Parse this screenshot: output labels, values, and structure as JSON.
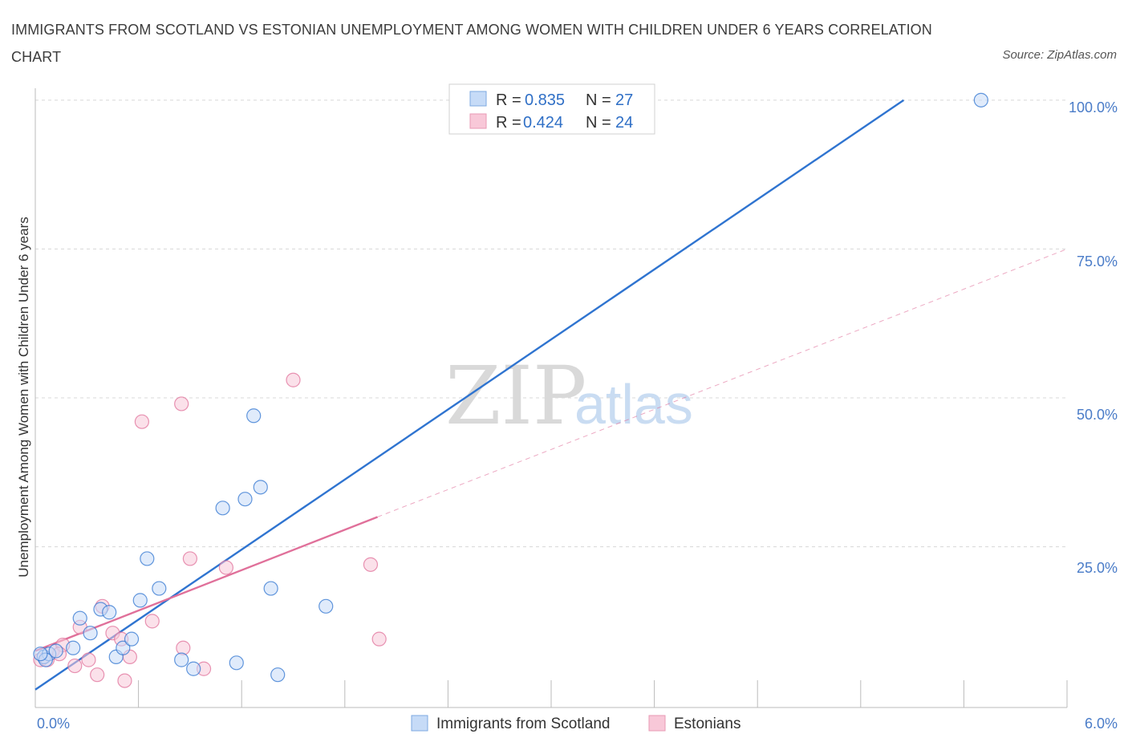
{
  "title": "IMMIGRANTS FROM SCOTLAND VS ESTONIAN UNEMPLOYMENT AMONG WOMEN WITH CHILDREN UNDER 6 YEARS CORRELATION CHART",
  "source": "Source: ZipAtlas.com",
  "watermark": {
    "zip": "ZIP",
    "atlas": "atlas"
  },
  "colors": {
    "blue": "#2f74d0",
    "blue_fill": "#c6dbf7",
    "pink": "#e0709a",
    "pink_fill": "#f8c8d8",
    "grid": "#d8d8d8",
    "axis_text": "#4a7cc8"
  },
  "legend": {
    "rows": [
      {
        "r_label": "R =",
        "r_value": "0.835",
        "n_label": "N =",
        "n_value": "27"
      },
      {
        "r_label": "R =",
        "r_value": "0.424",
        "n_label": "N =",
        "n_value": "24"
      }
    ]
  },
  "chart_data": {
    "type": "scatter",
    "title": "IMMIGRANTS FROM SCOTLAND VS ESTONIAN UNEMPLOYMENT AMONG WOMEN WITH CHILDREN UNDER 6 YEARS CORRELATION CHART",
    "xlabel": "",
    "ylabel": "Unemployment Among Women with Children Under 6 years",
    "xlim": [
      0,
      6
    ],
    "ylim": [
      -2,
      102
    ],
    "x_tick_labels": [
      "0.0%",
      "6.0%"
    ],
    "y_ticks": [
      25,
      50,
      75,
      100
    ],
    "y_tick_labels": [
      "25.0%",
      "50.0%",
      "75.0%",
      "100.0%"
    ],
    "series": [
      {
        "name": "Immigrants from Scotland",
        "color": "blue",
        "points": [
          [
            0.05,
            6.5
          ],
          [
            0.08,
            7.0
          ],
          [
            0.12,
            7.5
          ],
          [
            0.22,
            8.0
          ],
          [
            0.26,
            13.0
          ],
          [
            0.32,
            10.5
          ],
          [
            0.38,
            14.5
          ],
          [
            0.43,
            14.0
          ],
          [
            0.47,
            6.5
          ],
          [
            0.51,
            8.0
          ],
          [
            0.56,
            9.5
          ],
          [
            0.61,
            16.0
          ],
          [
            0.65,
            23.0
          ],
          [
            0.72,
            18.0
          ],
          [
            0.85,
            6.0
          ],
          [
            0.92,
            4.5
          ],
          [
            1.09,
            31.5
          ],
          [
            1.17,
            5.5
          ],
          [
            1.22,
            33.0
          ],
          [
            1.27,
            47.0
          ],
          [
            1.31,
            35.0
          ],
          [
            1.37,
            18.0
          ],
          [
            1.41,
            3.5
          ],
          [
            1.69,
            15.0
          ],
          [
            0.06,
            6.0
          ],
          [
            0.03,
            7.0
          ],
          [
            5.5,
            100.0
          ]
        ],
        "trend": {
          "x": [
            0.0,
            5.05
          ],
          "y": [
            1.0,
            100.0
          ]
        }
      },
      {
        "name": "Estonians",
        "color": "pink",
        "points": [
          [
            0.03,
            6.0
          ],
          [
            0.1,
            7.5
          ],
          [
            0.16,
            8.5
          ],
          [
            0.23,
            5.0
          ],
          [
            0.26,
            11.5
          ],
          [
            0.31,
            6.0
          ],
          [
            0.36,
            3.5
          ],
          [
            0.39,
            15.0
          ],
          [
            0.45,
            10.5
          ],
          [
            0.5,
            9.5
          ],
          [
            0.52,
            2.5
          ],
          [
            0.55,
            6.5
          ],
          [
            0.62,
            46.0
          ],
          [
            0.68,
            12.5
          ],
          [
            0.85,
            49.0
          ],
          [
            0.86,
            8.0
          ],
          [
            0.9,
            23.0
          ],
          [
            0.98,
            4.5
          ],
          [
            1.11,
            21.5
          ],
          [
            1.5,
            53.0
          ],
          [
            1.95,
            22.0
          ],
          [
            2.0,
            9.5
          ],
          [
            0.07,
            6.0
          ],
          [
            0.14,
            7.0
          ]
        ],
        "trend": {
          "x": [
            0.0,
            1.99
          ],
          "y": [
            7.5,
            30.0
          ]
        },
        "trend_extension": {
          "x": [
            1.99,
            6.0
          ],
          "y": [
            30.0,
            75.0
          ]
        }
      }
    ],
    "legend_labels": [
      "Immigrants from Scotland",
      "Estonians"
    ]
  }
}
